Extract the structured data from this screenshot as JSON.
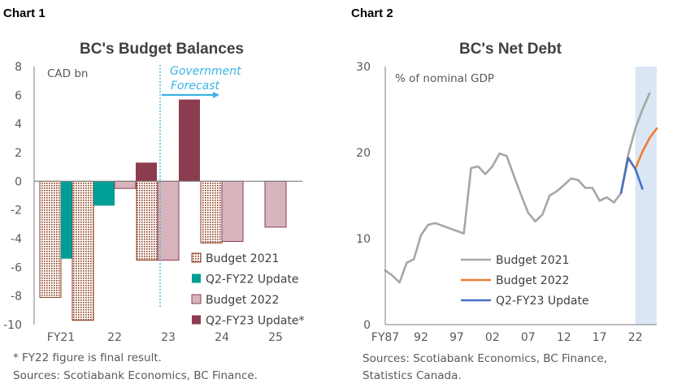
{
  "chart1": {
    "heading": "Chart 1",
    "title": "BC's Budget Balances",
    "unit_label": "CAD bn",
    "annotation": [
      "Government",
      "Forecast"
    ],
    "footnotes": [
      "* FY22 figure is final result.",
      "Sources: Scotiabank Economics, BC Finance."
    ],
    "colors": {
      "budget2021": "#8b3a1a",
      "q2fy22": "#009e96",
      "budget2022": "#d8b4bd",
      "q2fy23": "#8c3c4f",
      "forecast": "#3ab4e6"
    }
  },
  "chart2": {
    "heading": "Chart 2",
    "title": "BC's Net Debt",
    "unit_label": "% of nominal GDP",
    "footnotes": [
      "Sources: Scotiabank Economics, BC Finance,",
      "Statistics Canada."
    ],
    "colors": {
      "budget2021": "#a6a6a6",
      "budget2022": "#ed7d31",
      "q2fy23": "#4472c4",
      "shade": "#dae6f4"
    }
  },
  "chart_data": [
    {
      "type": "bar",
      "title": "BC's Budget Balances",
      "ylabel": "CAD bn",
      "ylim": [
        -10,
        8
      ],
      "yticks": [
        "8",
        "6",
        "4",
        "2",
        "0",
        "-2",
        "-4",
        "-6",
        "-8",
        "-10"
      ],
      "categories": [
        "FY21",
        "22",
        "23",
        "24",
        "25"
      ],
      "series": [
        {
          "name": "Budget 2021",
          "values": [
            -8.1,
            -9.7,
            -5.5,
            -4.3,
            null
          ]
        },
        {
          "name": "Q2-FY22 Update",
          "values": [
            -5.4,
            -1.7,
            null,
            null,
            null
          ]
        },
        {
          "name": "Budget 2022",
          "values": [
            null,
            -0.5,
            -5.5,
            -4.2,
            -3.2
          ]
        },
        {
          "name": "Q2-FY23 Update*",
          "values": [
            null,
            1.3,
            5.7,
            null,
            null
          ]
        }
      ],
      "legend": "bottom-right",
      "grid": false
    },
    {
      "type": "line",
      "title": "BC's Net Debt",
      "ylabel": "% of nominal GDP",
      "ylim": [
        0,
        30
      ],
      "yticks": [
        "30",
        "20",
        "10",
        "0"
      ],
      "xlim": [
        1987,
        2025
      ],
      "xticks": [
        "FY87",
        "92",
        "97",
        "02",
        "07",
        "12",
        "17",
        "22"
      ],
      "shaded_region": [
        2022,
        2025
      ],
      "series": [
        {
          "name": "Budget 2021",
          "x": [
            1987,
            1988,
            1989,
            1990,
            1991,
            1992,
            1993,
            1994,
            1995,
            1996,
            1997,
            1998,
            1999,
            2000,
            2001,
            2002,
            2003,
            2004,
            2005,
            2006,
            2007,
            2008,
            2009,
            2010,
            2011,
            2012,
            2013,
            2014,
            2015,
            2016,
            2017,
            2018,
            2019,
            2020,
            2021,
            2022,
            2023,
            2024
          ],
          "values": [
            6.3,
            5.7,
            4.9,
            7.2,
            7.6,
            10.4,
            11.6,
            11.8,
            11.5,
            11.2,
            10.9,
            10.6,
            18.2,
            18.4,
            17.5,
            18.4,
            19.9,
            19.6,
            17.3,
            15.1,
            13,
            12,
            12.8,
            15,
            15.5,
            16.2,
            17,
            16.8,
            15.9,
            15.9,
            14.4,
            14.8,
            14.2,
            15.3,
            19.7,
            22.8,
            25,
            26.9
          ]
        },
        {
          "name": "Budget 2022",
          "x": [
            2020,
            2021,
            2022,
            2023,
            2024,
            2025
          ],
          "values": [
            15.3,
            19.4,
            18.1,
            20.1,
            21.7,
            22.8
          ]
        },
        {
          "name": "Q2-FY23 Update",
          "x": [
            2020,
            2021,
            2022,
            2023
          ],
          "values": [
            15.3,
            19.4,
            18.1,
            15.8
          ]
        }
      ],
      "legend": "bottom-left",
      "grid": false
    }
  ]
}
